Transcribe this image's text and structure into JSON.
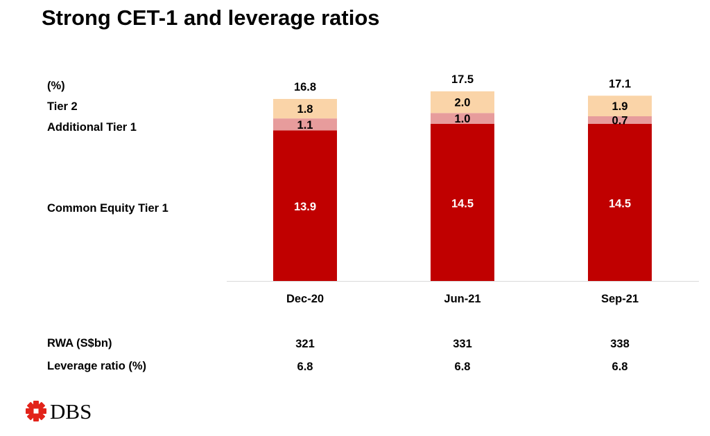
{
  "title": "Strong CET-1 and leverage ratios",
  "unit_label": "(%)",
  "legend": {
    "tier2": "Tier 2",
    "at1": "Additional Tier 1",
    "cet1": "Common Equity Tier 1"
  },
  "table": {
    "rwa_label": "RWA (S$bn)",
    "leverage_label": "Leverage ratio (%)",
    "rwa": [
      "321",
      "331",
      "338"
    ],
    "leverage": [
      "6.8",
      "6.8",
      "6.8"
    ]
  },
  "logo": {
    "text": "DBS",
    "icon": "dbs-star-icon",
    "color": "#e2231a"
  },
  "colors": {
    "cet1": "#c00000",
    "at1": "#e79c9c",
    "tier2": "#fad4a8"
  },
  "chart_data": {
    "type": "bar",
    "stacked": true,
    "categories": [
      "Dec-20",
      "Jun-21",
      "Sep-21"
    ],
    "series": [
      {
        "name": "Common Equity Tier 1",
        "values": [
          13.9,
          14.5,
          14.5
        ]
      },
      {
        "name": "Additional Tier 1",
        "values": [
          1.1,
          1.0,
          0.7
        ]
      },
      {
        "name": "Tier 2",
        "values": [
          1.8,
          2.0,
          1.9
        ]
      }
    ],
    "totals": [
      16.8,
      17.5,
      17.1
    ],
    "value_labels": [
      [
        "13.9",
        "14.5",
        "14.5"
      ],
      [
        "1.1",
        "1.0",
        "0.7"
      ],
      [
        "1.8",
        "2.0",
        "1.9"
      ]
    ],
    "total_labels": [
      "16.8",
      "17.5",
      "17.1"
    ],
    "ylim": [
      0,
      17.5
    ],
    "grid": false
  }
}
